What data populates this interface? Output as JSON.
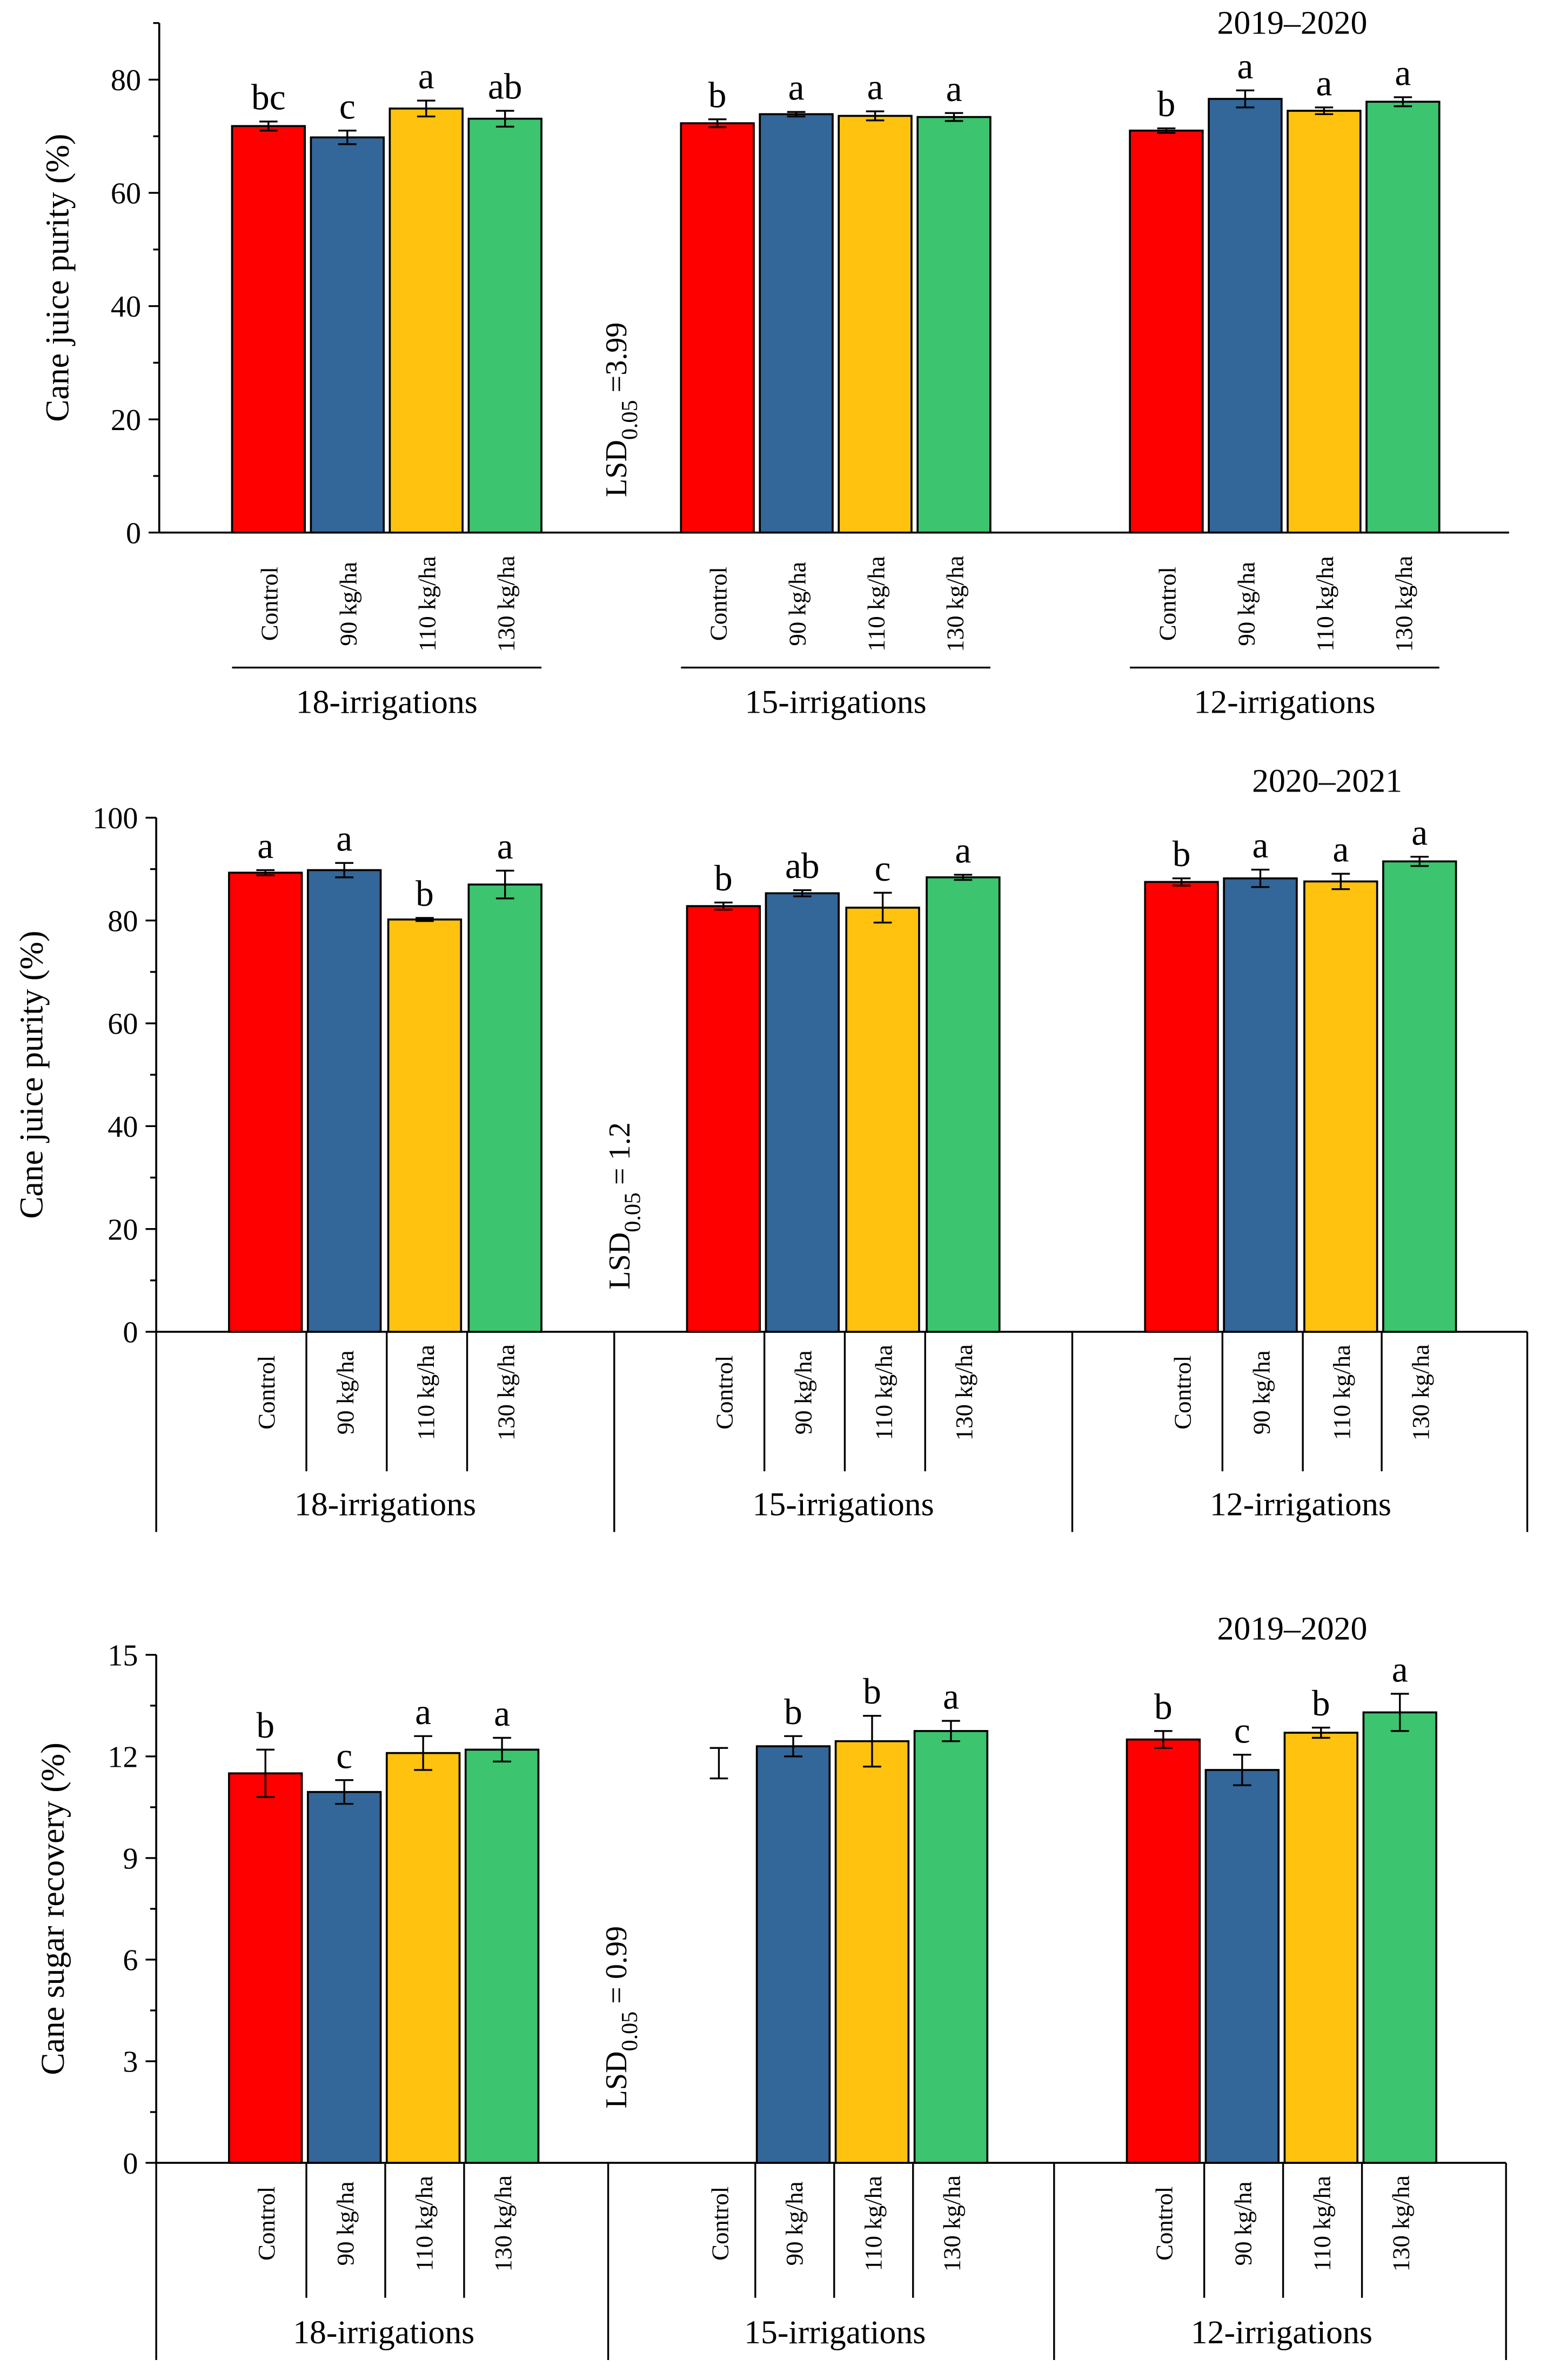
{
  "colors": {
    "Control": "#ff0000",
    "90 kg/ha": "#336699",
    "110 kg/ha": "#ffc20e",
    "130 kg/ha": "#3cc46e"
  },
  "chart_data": [
    {
      "type": "bar",
      "title": "2019–2020",
      "ylabel": "Cane juice purity (%)",
      "ylim": [
        0,
        90
      ],
      "yticks": [
        "0",
        "20",
        "40",
        "60",
        "80"
      ],
      "ytick_values": [
        0,
        20,
        40,
        60,
        80
      ],
      "lsd": "LSD",
      "lsd_sub": "0.05",
      "lsd_value": " =3.99",
      "treatments": [
        "Control",
        "90 kg/ha",
        "110 kg/ha",
        "130 kg/ha"
      ],
      "groups": [
        {
          "name": "18-irrigations",
          "values": [
            71.8,
            69.8,
            74.9,
            73.1
          ],
          "errors": [
            0.8,
            1.2,
            1.4,
            1.4
          ],
          "letters": [
            "bc",
            "c",
            "a",
            "ab"
          ]
        },
        {
          "name": "15-irrigations",
          "values": [
            72.3,
            73.9,
            73.6,
            73.4
          ],
          "errors": [
            0.7,
            0.4,
            0.8,
            0.7
          ],
          "letters": [
            "b",
            "a",
            "a",
            "a"
          ]
        },
        {
          "name": "12-irrigations",
          "values": [
            71.0,
            76.6,
            74.5,
            76.1
          ],
          "errors": [
            0.4,
            1.5,
            0.6,
            0.8
          ],
          "letters": [
            "b",
            "a",
            "a",
            "a"
          ]
        }
      ]
    },
    {
      "type": "bar",
      "title": "2020–2021",
      "ylabel": "Cane juice purity (%)",
      "ylim": [
        0,
        100
      ],
      "yticks": [
        "0",
        "20",
        "40",
        "60",
        "80",
        "100"
      ],
      "ytick_values": [
        0,
        20,
        40,
        60,
        80,
        100
      ],
      "lsd": "LSD",
      "lsd_sub": "0.05",
      "lsd_value": " = 1.2",
      "treatments": [
        "Control",
        "90 kg/ha",
        "110 kg/ha",
        "130 kg/ha"
      ],
      "groups": [
        {
          "name": "18-irrigations",
          "values": [
            89.3,
            89.8,
            80.2,
            87.0
          ],
          "errors": [
            0.5,
            1.4,
            0.3,
            2.7
          ],
          "letters": [
            "a",
            "a",
            "b",
            "a"
          ]
        },
        {
          "name": "15-irrigations",
          "values": [
            82.8,
            85.3,
            82.5,
            88.4
          ],
          "errors": [
            0.7,
            0.6,
            2.9,
            0.5
          ],
          "letters": [
            "b",
            "ab",
            "c",
            "a"
          ]
        },
        {
          "name": "12-irrigations",
          "values": [
            87.5,
            88.2,
            87.6,
            91.5
          ],
          "errors": [
            0.7,
            1.7,
            1.5,
            0.9
          ],
          "letters": [
            "b",
            "a",
            "a",
            "a"
          ]
        }
      ]
    },
    {
      "type": "bar",
      "title": "2019–2020",
      "ylabel": "Cane sugar recovery (%)",
      "ylim": [
        0,
        15
      ],
      "yticks": [
        "0",
        "3",
        "6",
        "9",
        "12",
        "15"
      ],
      "ytick_values": [
        0,
        3,
        6,
        9,
        12,
        15
      ],
      "lsd": "LSD",
      "lsd_sub": "0.05",
      "lsd_value": " = 0.99",
      "treatments": [
        "Control",
        "90 kg/ha",
        "110 kg/ha",
        "130 kg/ha"
      ],
      "groups": [
        {
          "name": "18-irrigations",
          "values": [
            11.5,
            10.95,
            12.1,
            12.2
          ],
          "errors": [
            0.7,
            0.35,
            0.5,
            0.35
          ],
          "letters": [
            "b",
            "c",
            "a",
            "a"
          ]
        },
        {
          "name": "15-irrigations",
          "values": [
            null,
            12.3,
            12.45,
            12.75
          ],
          "errors": [
            0.45,
            0.3,
            0.75,
            0.3
          ],
          "error_only_centers": [
            11.8,
            null,
            null,
            null
          ],
          "letters": [
            "",
            "b",
            "b",
            "a"
          ]
        },
        {
          "name": "12-irrigations",
          "values": [
            12.5,
            11.6,
            12.7,
            13.3
          ],
          "errors": [
            0.25,
            0.45,
            0.15,
            0.55
          ],
          "letters": [
            "b",
            "c",
            "b",
            "a"
          ]
        }
      ]
    }
  ]
}
